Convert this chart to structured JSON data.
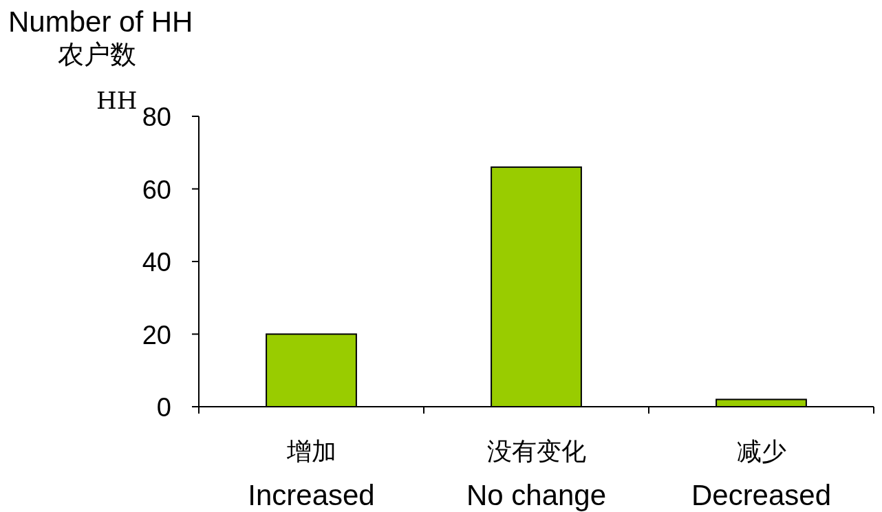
{
  "chart_data": {
    "type": "bar",
    "ylabel": "Number of HH\n农户数",
    "annotations": [
      "HH"
    ],
    "categories": [
      "增加\nIncreased",
      "没有变化\nNo change",
      "减少\nDecreased"
    ],
    "values": [
      20,
      66,
      2
    ],
    "color": "#99cc00",
    "ylim": [
      0,
      80
    ],
    "yticks": [
      0,
      20,
      40,
      60,
      80
    ]
  }
}
